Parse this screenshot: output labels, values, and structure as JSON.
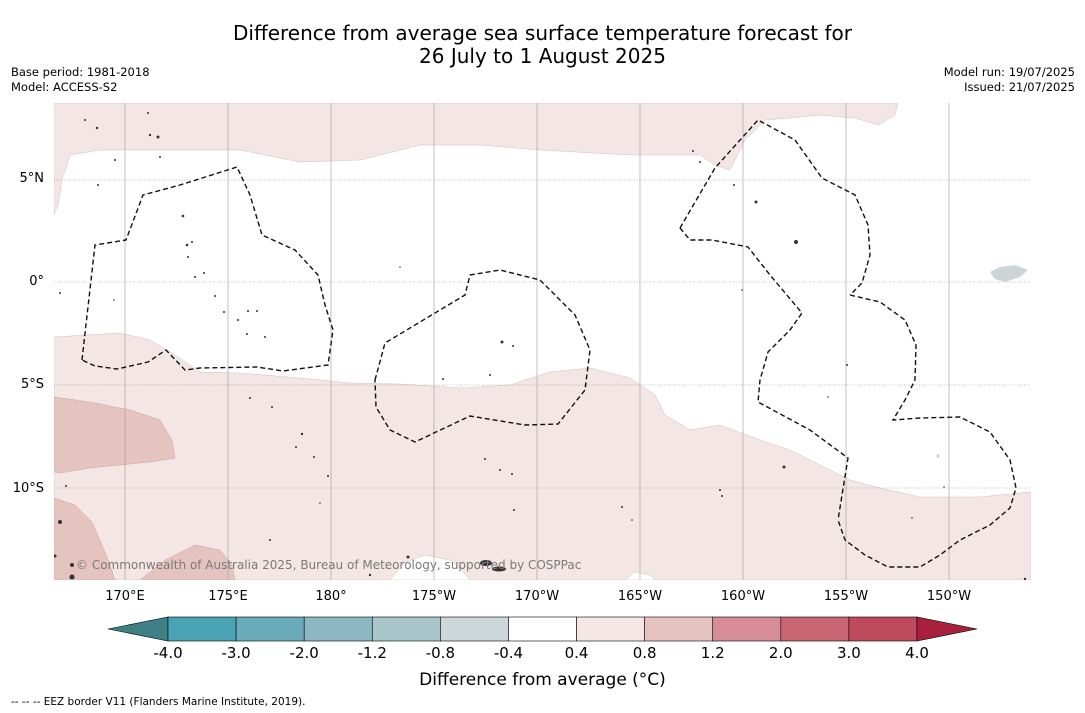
{
  "title": {
    "line1": "Difference from average sea surface temperature forecast for",
    "line2": "26 July to 1 August 2025"
  },
  "meta_left": {
    "base_period": "Base period: 1981-2018",
    "model": "Model: ACCESS-S2"
  },
  "meta_right": {
    "model_run": "Model run: 19/07/2025",
    "issued": "Issued: 21/07/2025"
  },
  "map": {
    "lat_labels": [
      "5°N",
      "0°",
      "5°S",
      "10°S"
    ],
    "lon_labels": [
      "170°E",
      "175°E",
      "180°",
      "175°W",
      "170°W",
      "165°W",
      "160°W",
      "155°W",
      "150°W"
    ],
    "copyright": "© Commonwealth of Australia 2025, Bureau of Meteorology, supported by COSPPac",
    "shading_colors": {
      "0.4_to_0.8": "#f3e6e4",
      "0.8_to_1.2": "#e5c4c0",
      "land": "#444444"
    }
  },
  "colorbar": {
    "tick_labels": [
      "-4.0",
      "-3.0",
      "-2.0",
      "-1.2",
      "-0.8",
      "-0.4",
      "0.4",
      "0.8",
      "1.2",
      "2.0",
      "3.0",
      "4.0"
    ],
    "colors": [
      "#3f7f86",
      "#4aa3b5",
      "#6aabba",
      "#8cb8c3",
      "#a9c7cb",
      "#cbd7d8",
      "#ffffff",
      "#f3e6e4",
      "#e5c4c0",
      "#d68d95",
      "#c96671",
      "#bf4a5c",
      "#a8203c"
    ],
    "title": "Difference from average (°C)"
  },
  "footnote": "--  --  -- EEZ border V11 (Flanders Marine Institute, 2019)."
}
